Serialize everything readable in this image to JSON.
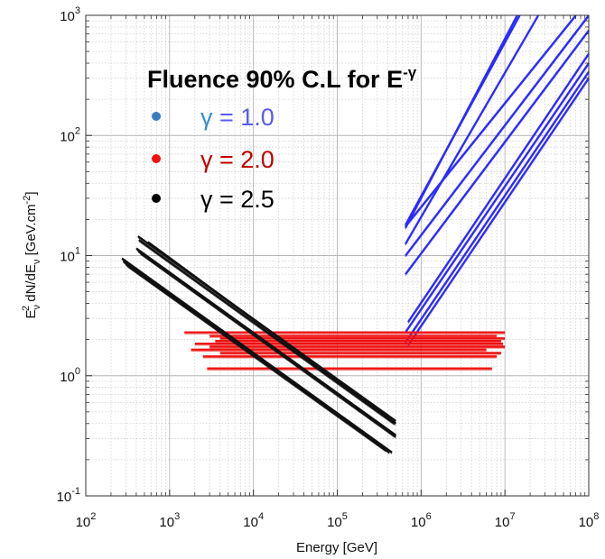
{
  "chart_data": {
    "type": "line",
    "xlabel": "Energy [GeV]",
    "ylabel": "Eν2 dN/dEν [GeV.cm-2]",
    "ylabel_parts": {
      "e": "E",
      "nu": "ν",
      "two": "2",
      "mid": " dN/dE",
      "unit": " [GeV.cm",
      "exp": "-2",
      "close": "]"
    },
    "xscale": "log",
    "yscale": "log",
    "xlim": [
      100,
      100000000
    ],
    "ylim": [
      0.1,
      1000
    ],
    "x_ticks": [
      {
        "base": "10",
        "exp": "2",
        "value": 100
      },
      {
        "base": "10",
        "exp": "3",
        "value": 1000
      },
      {
        "base": "10",
        "exp": "4",
        "value": 10000
      },
      {
        "base": "10",
        "exp": "5",
        "value": 100000
      },
      {
        "base": "10",
        "exp": "6",
        "value": 1000000
      },
      {
        "base": "10",
        "exp": "7",
        "value": 10000000
      },
      {
        "base": "10",
        "exp": "8",
        "value": 100000000
      }
    ],
    "y_ticks": [
      {
        "base": "10",
        "exp": "-1",
        "value": 0.1
      },
      {
        "base": "10",
        "exp": "0",
        "value": 1
      },
      {
        "base": "10",
        "exp": "1",
        "value": 10
      },
      {
        "base": "10",
        "exp": "2",
        "value": 100
      },
      {
        "base": "10",
        "exp": "3",
        "value": 1000
      }
    ],
    "grid": true,
    "legend": {
      "position": "top-left",
      "title": "Fluence 90% C.L for E",
      "title_exp": "-γ",
      "entries": [
        {
          "label": "γ = 1.0",
          "gamma_part": "γ",
          "value_part": " = 1.0",
          "marker_color": "#3a7abf",
          "text_color": "#5a5af0",
          "gamma_color": "#3a8fd0"
        },
        {
          "label": "γ = 2.0",
          "gamma_part": "γ",
          "value_part": " = 2.0",
          "marker_color": "#ee1111",
          "text_color": "#c00000",
          "gamma_color": "#c00000"
        },
        {
          "label": "γ = 2.5",
          "gamma_part": "γ",
          "value_part": " = 2.5",
          "marker_color": "#000000",
          "text_color": "#000000",
          "gamma_color": "#000000"
        }
      ]
    },
    "series": [
      {
        "name": "γ = 1.0",
        "color": "#2b2bff",
        "slope": 1.0,
        "lines": [
          {
            "x": [
              650000,
              15000000
            ],
            "y": [
              18,
              1000
            ]
          },
          {
            "x": [
              650000,
              14000000
            ],
            "y": [
              17,
              1000
            ]
          },
          {
            "x": [
              650000,
              70000000
            ],
            "y": [
              17.5,
              1000
            ]
          },
          {
            "x": [
              650000,
              25000000
            ],
            "y": [
              12.5,
              1000
            ]
          },
          {
            "x": [
              650000,
              100000000
            ],
            "y": [
              10,
              1000
            ]
          },
          {
            "x": [
              650000,
              100000000
            ],
            "y": [
              7,
              750
            ]
          },
          {
            "x": [
              700000,
              100000000
            ],
            "y": [
              2.8,
              480
            ]
          },
          {
            "x": [
              650000,
              100000000
            ],
            "y": [
              2.3,
              400
            ]
          },
          {
            "x": [
              650000,
              100000000
            ],
            "y": [
              1.9,
              340
            ]
          },
          {
            "x": [
              700000,
              100000000
            ],
            "y": [
              1.8,
              300
            ]
          }
        ]
      },
      {
        "name": "γ = 2.0",
        "color": "#ee1111",
        "slope": 0.0,
        "lines": [
          {
            "x": [
              1500,
              10000000
            ],
            "y": [
              2.3,
              2.3
            ]
          },
          {
            "x": [
              3000,
              8000000
            ],
            "y": [
              2.15,
              2.15
            ]
          },
          {
            "x": [
              4000,
              10000000
            ],
            "y": [
              2.05,
              2.05
            ]
          },
          {
            "x": [
              3500,
              9000000
            ],
            "y": [
              1.95,
              1.95
            ]
          },
          {
            "x": [
              2000,
              9500000
            ],
            "y": [
              1.85,
              1.85
            ]
          },
          {
            "x": [
              3000,
              10000000
            ],
            "y": [
              1.75,
              1.75
            ]
          },
          {
            "x": [
              1800,
              6000000
            ],
            "y": [
              1.65,
              1.65
            ]
          },
          {
            "x": [
              4000,
              9000000
            ],
            "y": [
              1.55,
              1.55
            ]
          },
          {
            "x": [
              2500,
              8000000
            ],
            "y": [
              1.45,
              1.45
            ]
          },
          {
            "x": [
              2800,
              7000000
            ],
            "y": [
              1.15,
              1.15
            ]
          }
        ]
      },
      {
        "name": "γ = 2.5",
        "color": "#111111",
        "slope": -0.5,
        "lines": [
          {
            "x": [
              420,
              500000
            ],
            "y": [
              14.5,
              0.42
            ]
          },
          {
            "x": [
              430,
              480000
            ],
            "y": [
              13.5,
              0.4
            ]
          },
          {
            "x": [
              550,
              500000
            ],
            "y": [
              13,
              0.4
            ]
          },
          {
            "x": [
              400,
              500000
            ],
            "y": [
              11.5,
              0.32
            ]
          },
          {
            "x": [
              420,
              480000
            ],
            "y": [
              11,
              0.32
            ]
          },
          {
            "x": [
              450,
              500000
            ],
            "y": [
              10.5,
              0.31
            ]
          },
          {
            "x": [
              270,
              450000
            ],
            "y": [
              9.5,
              0.23
            ]
          },
          {
            "x": [
              280,
              420000
            ],
            "y": [
              9.0,
              0.23
            ]
          },
          {
            "x": [
              300,
              400000
            ],
            "y": [
              8.5,
              0.24
            ]
          },
          {
            "x": [
              320,
              380000
            ],
            "y": [
              8.2,
              0.24
            ]
          }
        ]
      }
    ]
  }
}
